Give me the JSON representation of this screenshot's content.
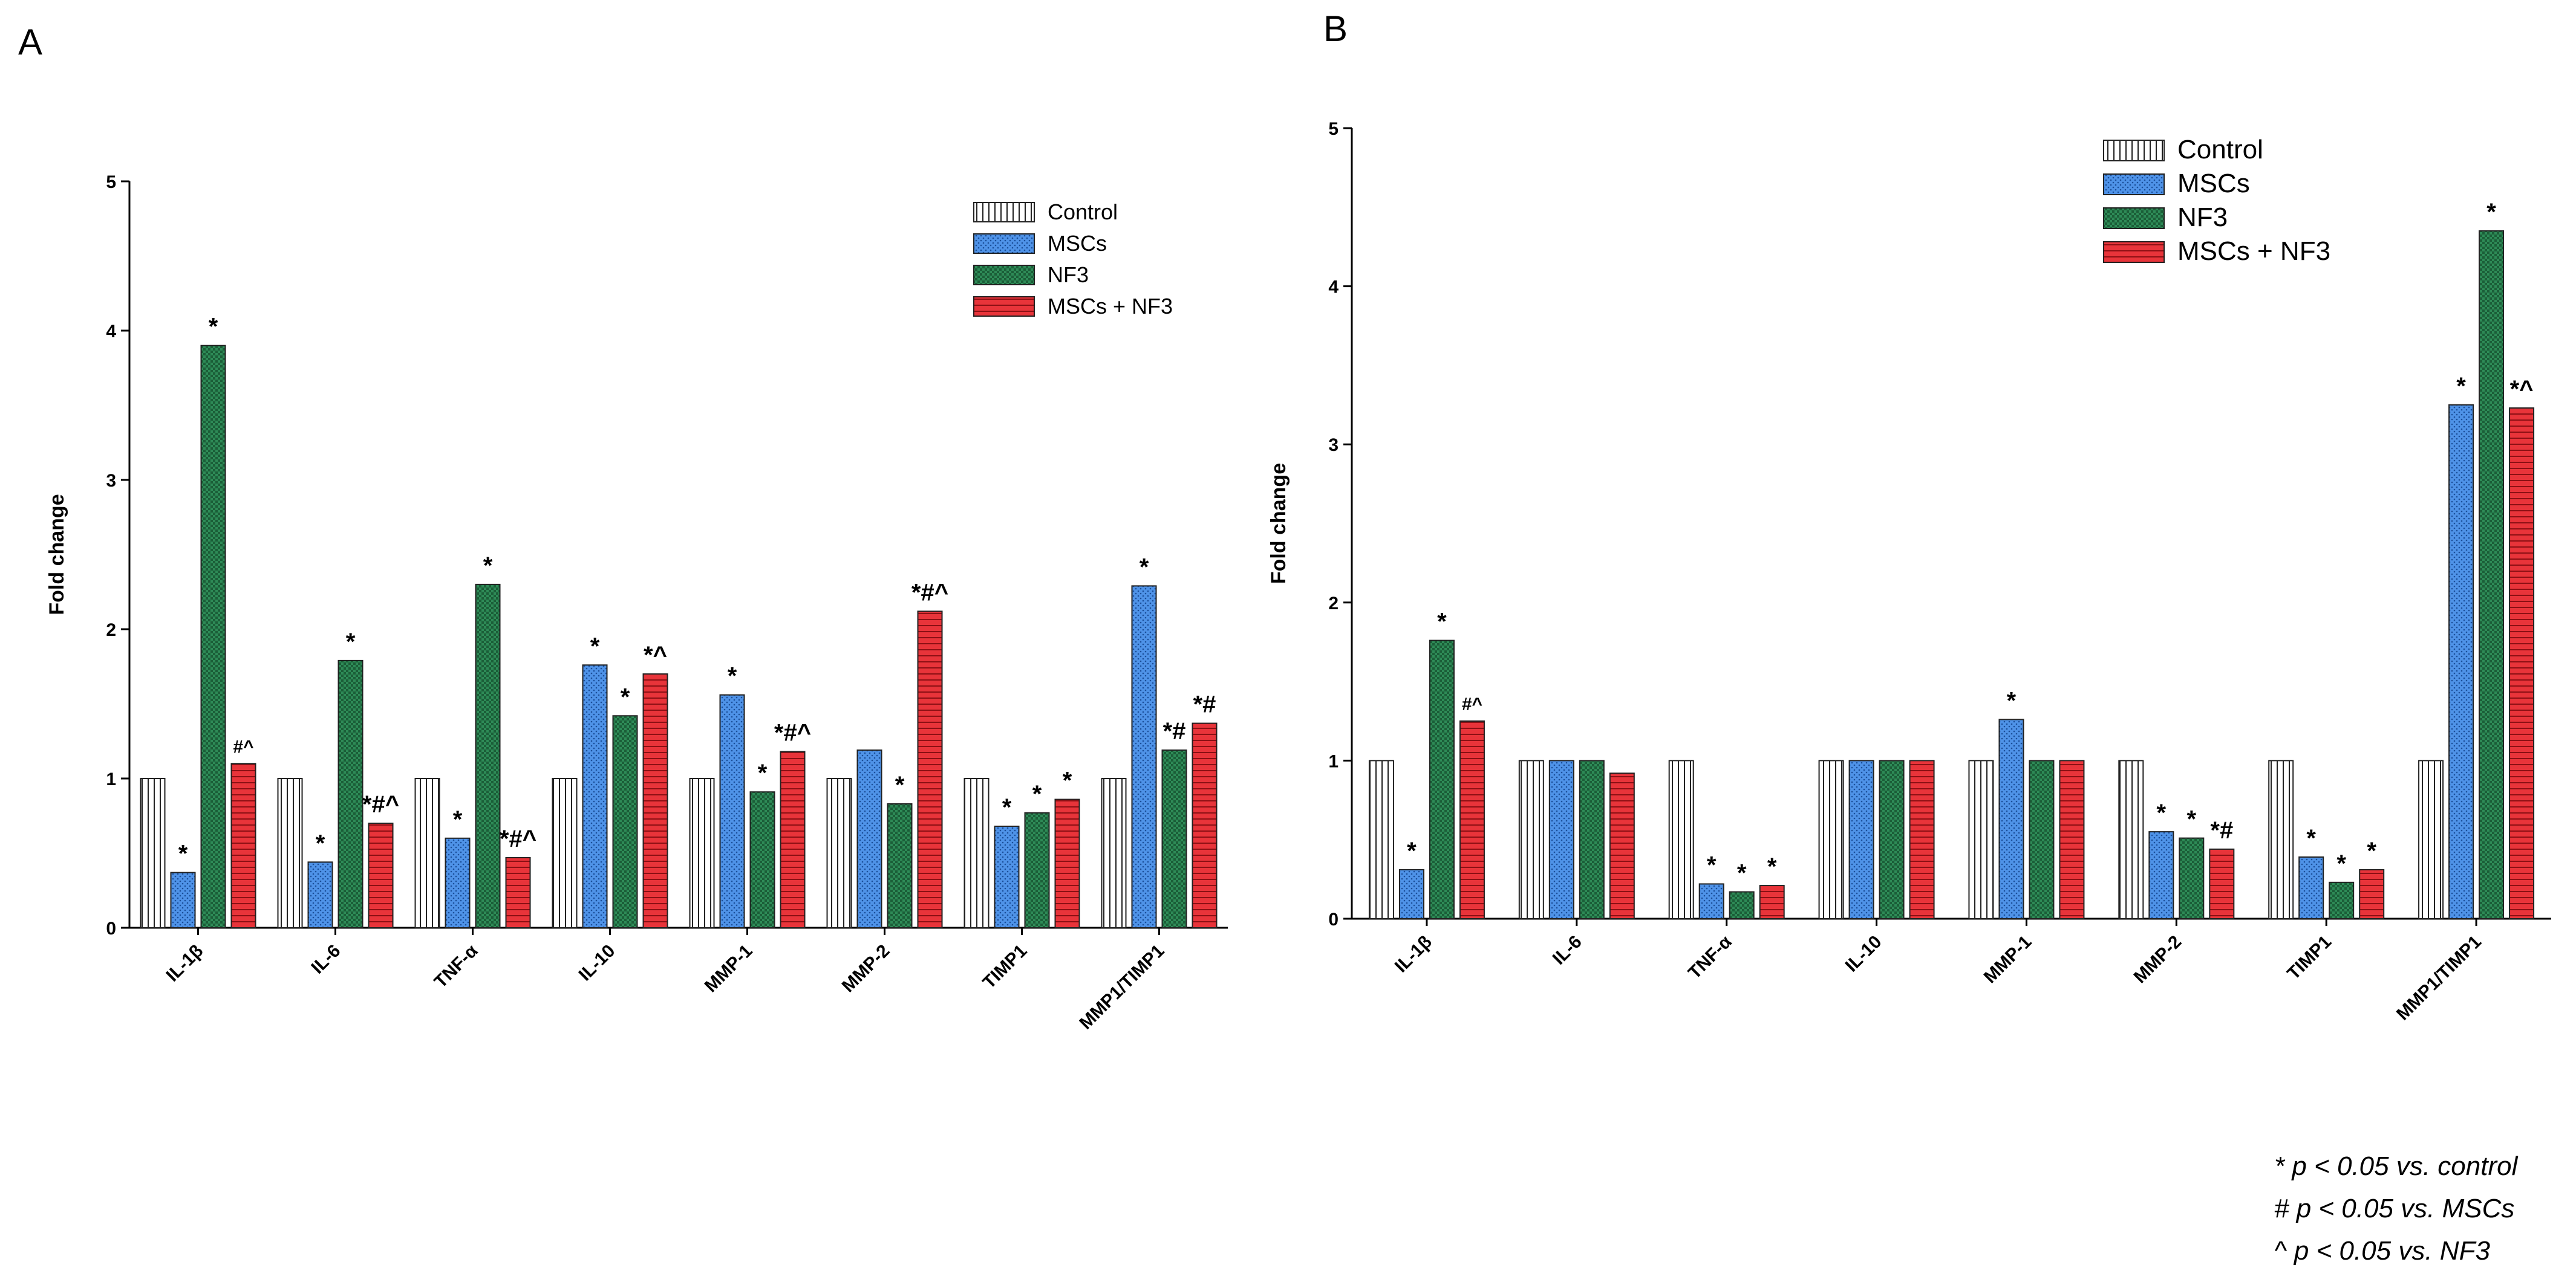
{
  "chart_data": [
    {
      "panel": "A",
      "type": "bar",
      "ylabel": "Fold change",
      "ylim": [
        0,
        5
      ],
      "yticks": [
        0,
        1,
        2,
        3,
        4,
        5
      ],
      "categories": [
        "IL-1β",
        "IL-6",
        "TNF-α",
        "IL-10",
        "MMP-1",
        "MMP-2",
        "TIMP1",
        "MMP1/TIMP1"
      ],
      "series": [
        {
          "name": "Control",
          "values": [
            1,
            1,
            1,
            1,
            1,
            1,
            1,
            1
          ]
        },
        {
          "name": "MSCs",
          "values": [
            0.37,
            0.44,
            0.6,
            1.76,
            1.56,
            1.19,
            0.68,
            2.29
          ]
        },
        {
          "name": "NF3",
          "values": [
            3.9,
            1.79,
            2.3,
            1.42,
            0.91,
            0.83,
            0.77,
            1.19
          ]
        },
        {
          "name": "MSCs + NF3",
          "values": [
            1.1,
            0.7,
            0.47,
            1.7,
            1.18,
            2.12,
            0.86,
            1.37
          ]
        }
      ],
      "annotations": [
        {
          "category": 0,
          "series": 1,
          "text": "*"
        },
        {
          "category": 0,
          "series": 2,
          "text": "*"
        },
        {
          "category": 0,
          "series": 3,
          "text": "#^"
        },
        {
          "category": 1,
          "series": 1,
          "text": "*"
        },
        {
          "category": 1,
          "series": 2,
          "text": "*"
        },
        {
          "category": 1,
          "series": 3,
          "text": "*#^"
        },
        {
          "category": 2,
          "series": 1,
          "text": "*"
        },
        {
          "category": 2,
          "series": 2,
          "text": "*"
        },
        {
          "category": 2,
          "series": 3,
          "text": "*#^"
        },
        {
          "category": 3,
          "series": 1,
          "text": "*"
        },
        {
          "category": 3,
          "series": 2,
          "text": "*"
        },
        {
          "category": 3,
          "series": 3,
          "text": "*^"
        },
        {
          "category": 4,
          "series": 1,
          "text": "*"
        },
        {
          "category": 4,
          "series": 2,
          "text": "*"
        },
        {
          "category": 4,
          "series": 3,
          "text": "*#^"
        },
        {
          "category": 5,
          "series": 2,
          "text": "*"
        },
        {
          "category": 5,
          "series": 3,
          "text": "*#^"
        },
        {
          "category": 6,
          "series": 1,
          "text": "*"
        },
        {
          "category": 6,
          "series": 2,
          "text": "*"
        },
        {
          "category": 6,
          "series": 3,
          "text": "*"
        },
        {
          "category": 7,
          "series": 1,
          "text": "*"
        },
        {
          "category": 7,
          "series": 2,
          "text": "*#"
        },
        {
          "category": 7,
          "series": 3,
          "text": "*#"
        }
      ]
    },
    {
      "panel": "B",
      "type": "bar",
      "ylabel": "Fold change",
      "ylim": [
        0,
        5
      ],
      "yticks": [
        0,
        1,
        2,
        3,
        4,
        5
      ],
      "categories": [
        "IL-1β",
        "IL-6",
        "TNF-α",
        "IL-10",
        "MMP-1",
        "MMP-2",
        "TIMP1",
        "MMP1/TIMP1"
      ],
      "series": [
        {
          "name": "Control",
          "values": [
            1,
            1,
            1,
            1,
            1,
            1,
            1,
            1
          ]
        },
        {
          "name": "MSCs",
          "values": [
            0.31,
            1,
            0.22,
            1,
            1.26,
            0.55,
            0.39,
            3.25
          ]
        },
        {
          "name": "NF3",
          "values": [
            1.76,
            1,
            0.17,
            1,
            1,
            0.51,
            0.23,
            4.35
          ]
        },
        {
          "name": "MSCs + NF3",
          "values": [
            1.25,
            0.92,
            0.21,
            1,
            1,
            0.44,
            0.31,
            3.23
          ]
        }
      ],
      "annotations": [
        {
          "category": 0,
          "series": 1,
          "text": "*"
        },
        {
          "category": 0,
          "series": 2,
          "text": "*"
        },
        {
          "category": 0,
          "series": 3,
          "text": "#^"
        },
        {
          "category": 2,
          "series": 1,
          "text": "*"
        },
        {
          "category": 2,
          "series": 2,
          "text": "*"
        },
        {
          "category": 2,
          "series": 3,
          "text": "*"
        },
        {
          "category": 4,
          "series": 1,
          "text": "*"
        },
        {
          "category": 5,
          "series": 1,
          "text": "*"
        },
        {
          "category": 5,
          "series": 2,
          "text": "*"
        },
        {
          "category": 5,
          "series": 3,
          "text": "*#"
        },
        {
          "category": 6,
          "series": 1,
          "text": "*"
        },
        {
          "category": 6,
          "series": 2,
          "text": "*"
        },
        {
          "category": 6,
          "series": 3,
          "text": "*"
        },
        {
          "category": 7,
          "series": 1,
          "text": "*"
        },
        {
          "category": 7,
          "series": 2,
          "text": "*"
        },
        {
          "category": 7,
          "series": 3,
          "text": "*^"
        }
      ]
    }
  ],
  "colors": {
    "control": "#ffffff",
    "mscs": "#4f93e8",
    "nf3": "#2e8b57",
    "combo": "#e8343a"
  },
  "footnotes": [
    "* p < 0.05 vs. control",
    "# p < 0.05 vs. MSCs",
    "^ p < 0.05 vs. NF3"
  ]
}
